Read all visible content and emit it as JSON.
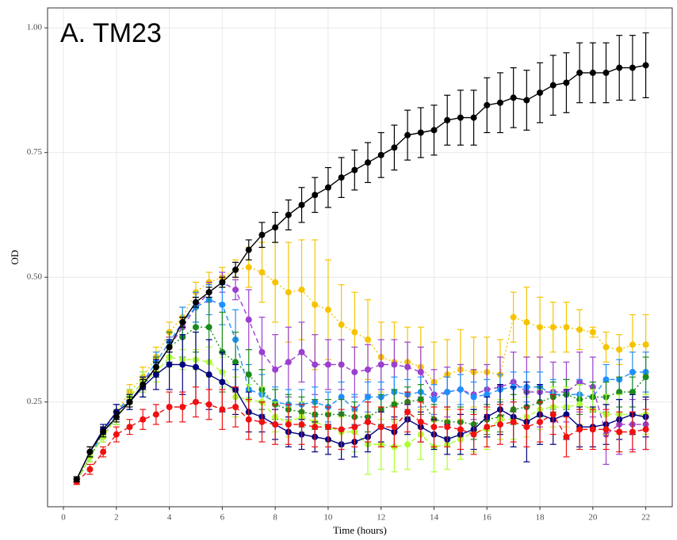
{
  "chart_data": {
    "type": "line",
    "title": "A. TM23",
    "xlabel": "Time (hours)",
    "ylabel": "OD",
    "x": [
      0.5,
      1,
      1.5,
      2,
      2.5,
      3,
      3.5,
      4,
      4.5,
      5,
      5.5,
      6,
      6.5,
      7,
      7.5,
      8,
      8.5,
      9,
      9.5,
      10,
      10.5,
      11,
      11.5,
      12,
      12.5,
      13,
      13.5,
      14,
      14.5,
      15,
      15.5,
      16,
      16.5,
      17,
      17.5,
      18,
      18.5,
      19,
      19.5,
      20,
      20.5,
      21,
      21.5,
      22
    ],
    "xlim": [
      -0.6,
      23.0
    ],
    "xticks": [
      0,
      2,
      4,
      6,
      8,
      10,
      12,
      14,
      16,
      18,
      20,
      22
    ],
    "ylim": [
      0.04,
      1.04
    ],
    "yticks": [
      {
        "value": 0.25,
        "label": "0.25"
      },
      {
        "value": 0.5,
        "label": "0.50"
      },
      {
        "value": 0.75,
        "label": "0.75"
      },
      {
        "value": 1,
        "label": "1.00"
      }
    ],
    "grid": true,
    "series": [
      {
        "color": "#f5c400",
        "linestyle": "dotted",
        "values": [
          0.09,
          0.14,
          0.19,
          0.23,
          0.27,
          0.3,
          0.34,
          0.39,
          0.42,
          0.47,
          0.49,
          0.5,
          0.515,
          0.52,
          0.51,
          0.49,
          0.47,
          0.475,
          0.445,
          0.435,
          0.405,
          0.39,
          0.375,
          0.34,
          0.33,
          0.33,
          0.32,
          0.29,
          0.305,
          0.315,
          0.31,
          0.31,
          0.305,
          0.42,
          0.41,
          0.4,
          0.4,
          0.4,
          0.395,
          0.39,
          0.36,
          0.355,
          0.365,
          0.365
        ],
        "errors": [
          0.005,
          0.01,
          0.01,
          0.015,
          0.015,
          0.02,
          0.02,
          0.02,
          0.02,
          0.02,
          0.02,
          0.02,
          0.02,
          0.04,
          0.06,
          0.08,
          0.1,
          0.1,
          0.13,
          0.1,
          0.08,
          0.08,
          0.08,
          0.07,
          0.08,
          0.07,
          0.08,
          0.08,
          0.07,
          0.08,
          0.07,
          0.07,
          0.07,
          0.05,
          0.07,
          0.06,
          0.05,
          0.05,
          0.04,
          0.01,
          0.03,
          0.03,
          0.06,
          0.06
        ]
      },
      {
        "color": "#9b3fcf",
        "linestyle": "dashed",
        "values": [
          0.09,
          0.14,
          0.19,
          0.22,
          0.26,
          0.29,
          0.32,
          0.36,
          0.4,
          0.44,
          0.47,
          0.49,
          0.475,
          0.415,
          0.35,
          0.315,
          0.33,
          0.35,
          0.325,
          0.325,
          0.325,
          0.31,
          0.315,
          0.325,
          0.325,
          0.32,
          0.31,
          0.265,
          0.27,
          0.275,
          0.265,
          0.275,
          0.28,
          0.29,
          0.27,
          0.27,
          0.27,
          0.27,
          0.29,
          0.28,
          0.185,
          0.205,
          0.205,
          0.205
        ],
        "errors": [
          0.005,
          0.01,
          0.01,
          0.015,
          0.015,
          0.02,
          0.02,
          0.02,
          0.02,
          0.03,
          0.02,
          0.02,
          0.02,
          0.06,
          0.07,
          0.07,
          0.07,
          0.06,
          0.06,
          0.05,
          0.05,
          0.05,
          0.05,
          0.05,
          0.05,
          0.05,
          0.05,
          0.05,
          0.05,
          0.05,
          0.05,
          0.05,
          0.06,
          0.06,
          0.07,
          0.07,
          0.06,
          0.06,
          0.06,
          0.06,
          0.06,
          0.06,
          0.05,
          0.05
        ]
      },
      {
        "color": "#1e90ff",
        "linestyle": "dashed",
        "values": [
          0.09,
          0.14,
          0.19,
          0.23,
          0.26,
          0.29,
          0.33,
          0.37,
          0.41,
          0.44,
          0.455,
          0.445,
          0.375,
          0.275,
          0.265,
          0.25,
          0.245,
          0.245,
          0.25,
          0.24,
          0.26,
          0.235,
          0.26,
          0.26,
          0.27,
          0.265,
          0.27,
          0.255,
          0.27,
          0.275,
          0.26,
          0.265,
          0.275,
          0.28,
          0.28,
          0.28,
          0.265,
          0.265,
          0.265,
          0.26,
          0.295,
          0.295,
          0.31,
          0.31
        ],
        "errors": [
          0.005,
          0.01,
          0.01,
          0.015,
          0.015,
          0.02,
          0.02,
          0.02,
          0.03,
          0.03,
          0.03,
          0.04,
          0.06,
          0.05,
          0.04,
          0.03,
          0.03,
          0.03,
          0.03,
          0.03,
          0.03,
          0.03,
          0.03,
          0.03,
          0.03,
          0.03,
          0.03,
          0.03,
          0.03,
          0.03,
          0.03,
          0.03,
          0.03,
          0.03,
          0.03,
          0.03,
          0.03,
          0.03,
          0.03,
          0.03,
          0.03,
          0.04,
          0.04,
          0.04
        ]
      },
      {
        "color": "#1a8a1a",
        "linestyle": "dotted",
        "values": [
          0.09,
          0.14,
          0.18,
          0.22,
          0.25,
          0.28,
          0.32,
          0.36,
          0.38,
          0.4,
          0.4,
          0.35,
          0.33,
          0.305,
          0.275,
          0.245,
          0.235,
          0.23,
          0.225,
          0.225,
          0.225,
          0.22,
          0.22,
          0.235,
          0.245,
          0.25,
          0.255,
          0.215,
          0.21,
          0.21,
          0.205,
          0.215,
          0.22,
          0.235,
          0.24,
          0.25,
          0.26,
          0.265,
          0.255,
          0.26,
          0.26,
          0.27,
          0.27,
          0.3
        ],
        "errors": [
          0.005,
          0.01,
          0.01,
          0.015,
          0.015,
          0.02,
          0.02,
          0.03,
          0.04,
          0.05,
          0.07,
          0.08,
          0.06,
          0.05,
          0.04,
          0.03,
          0.03,
          0.03,
          0.03,
          0.03,
          0.03,
          0.03,
          0.03,
          0.03,
          0.03,
          0.03,
          0.03,
          0.03,
          0.03,
          0.03,
          0.03,
          0.03,
          0.03,
          0.03,
          0.03,
          0.03,
          0.03,
          0.03,
          0.03,
          0.03,
          0.03,
          0.03,
          0.03,
          0.04
        ]
      },
      {
        "color": "#adff2f",
        "linestyle": "dashed",
        "values": [
          0.09,
          0.14,
          0.18,
          0.22,
          0.26,
          0.29,
          0.31,
          0.34,
          0.335,
          0.335,
          0.33,
          0.31,
          0.26,
          0.255,
          0.25,
          0.22,
          0.21,
          0.22,
          0.21,
          0.2,
          0.19,
          0.19,
          0.165,
          0.165,
          0.16,
          0.165,
          0.185,
          0.16,
          0.165,
          0.175,
          0.19,
          0.195,
          0.215,
          0.215,
          0.22,
          0.235,
          0.24,
          0.24,
          0.245,
          0.235,
          0.225,
          0.225,
          0.225,
          0.225
        ],
        "errors": [
          0.005,
          0.01,
          0.01,
          0.015,
          0.015,
          0.02,
          0.02,
          0.02,
          0.02,
          0.02,
          0.03,
          0.03,
          0.04,
          0.03,
          0.03,
          0.03,
          0.03,
          0.03,
          0.03,
          0.03,
          0.03,
          0.04,
          0.06,
          0.05,
          0.05,
          0.05,
          0.05,
          0.05,
          0.05,
          0.04,
          0.04,
          0.04,
          0.04,
          0.04,
          0.04,
          0.04,
          0.04,
          0.04,
          0.04,
          0.04,
          0.04,
          0.04,
          0.04,
          0.04
        ]
      },
      {
        "color": "#00007f",
        "linestyle": "solid",
        "values": [
          0.095,
          0.15,
          0.195,
          0.23,
          0.25,
          0.28,
          0.305,
          0.325,
          0.325,
          0.32,
          0.305,
          0.29,
          0.275,
          0.23,
          0.22,
          0.205,
          0.19,
          0.185,
          0.18,
          0.175,
          0.165,
          0.17,
          0.18,
          0.2,
          0.19,
          0.215,
          0.2,
          0.185,
          0.175,
          0.185,
          0.195,
          0.22,
          0.235,
          0.22,
          0.21,
          0.225,
          0.215,
          0.225,
          0.2,
          0.2,
          0.205,
          0.215,
          0.225,
          0.22
        ],
        "errors": [
          0.005,
          0.01,
          0.01,
          0.015,
          0.015,
          0.02,
          0.03,
          0.05,
          0.06,
          0.07,
          0.07,
          0.06,
          0.05,
          0.04,
          0.03,
          0.03,
          0.03,
          0.03,
          0.03,
          0.03,
          0.03,
          0.03,
          0.03,
          0.03,
          0.03,
          0.03,
          0.03,
          0.03,
          0.03,
          0.04,
          0.04,
          0.04,
          0.05,
          0.06,
          0.08,
          0.06,
          0.05,
          0.05,
          0.04,
          0.04,
          0.04,
          0.04,
          0.04,
          0.04
        ]
      },
      {
        "color": "#f01010",
        "linestyle": "dashed",
        "values": [
          0.09,
          0.115,
          0.15,
          0.185,
          0.2,
          0.215,
          0.225,
          0.24,
          0.24,
          0.25,
          0.245,
          0.235,
          0.24,
          0.215,
          0.21,
          0.205,
          0.205,
          0.205,
          0.2,
          0.2,
          0.195,
          0.2,
          0.21,
          0.2,
          0.2,
          0.23,
          0.21,
          0.2,
          0.2,
          0.195,
          0.185,
          0.2,
          0.205,
          0.21,
          0.2,
          0.21,
          0.225,
          0.18,
          0.195,
          0.195,
          0.195,
          0.19,
          0.19,
          0.195
        ],
        "errors": [
          0.005,
          0.01,
          0.01,
          0.015,
          0.015,
          0.02,
          0.02,
          0.03,
          0.03,
          0.03,
          0.03,
          0.04,
          0.04,
          0.04,
          0.04,
          0.04,
          0.04,
          0.04,
          0.04,
          0.04,
          0.04,
          0.04,
          0.04,
          0.04,
          0.04,
          0.04,
          0.04,
          0.04,
          0.04,
          0.04,
          0.04,
          0.04,
          0.04,
          0.04,
          0.04,
          0.04,
          0.04,
          0.04,
          0.04,
          0.04,
          0.04,
          0.04,
          0.04,
          0.04
        ]
      },
      {
        "color": "#000000",
        "linestyle": "solid",
        "values": [
          0.095,
          0.15,
          0.19,
          0.22,
          0.25,
          0.285,
          0.32,
          0.36,
          0.41,
          0.45,
          0.47,
          0.49,
          0.515,
          0.555,
          0.585,
          0.6,
          0.625,
          0.645,
          0.665,
          0.68,
          0.7,
          0.715,
          0.73,
          0.745,
          0.76,
          0.785,
          0.79,
          0.795,
          0.815,
          0.82,
          0.82,
          0.845,
          0.85,
          0.86,
          0.855,
          0.87,
          0.885,
          0.89,
          0.91,
          0.91,
          0.91,
          0.92,
          0.92,
          0.925
        ],
        "errors": [
          0.005,
          0.01,
          0.01,
          0.01,
          0.01,
          0.01,
          0.01,
          0.01,
          0.01,
          0.01,
          0.01,
          0.01,
          0.015,
          0.02,
          0.025,
          0.03,
          0.03,
          0.035,
          0.035,
          0.04,
          0.04,
          0.04,
          0.04,
          0.045,
          0.045,
          0.05,
          0.05,
          0.05,
          0.05,
          0.055,
          0.055,
          0.055,
          0.06,
          0.06,
          0.06,
          0.06,
          0.06,
          0.06,
          0.06,
          0.06,
          0.06,
          0.065,
          0.065,
          0.065
        ]
      }
    ]
  }
}
